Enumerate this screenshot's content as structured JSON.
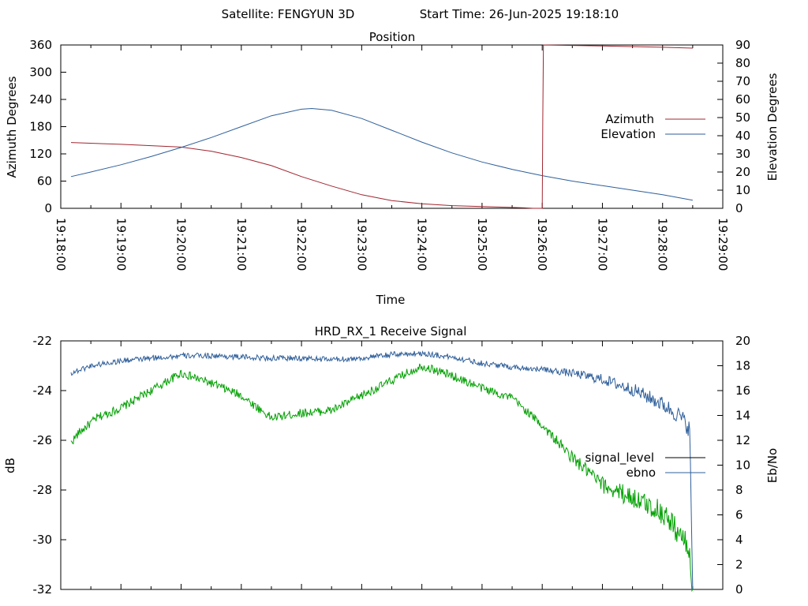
{
  "header": {
    "satellite_label": "Satellite: FENGYUN 3D",
    "start_time_label": "Start Time: 26-Jun-2025 19:18:10"
  },
  "chart_data": [
    {
      "type": "line",
      "title": "Position",
      "xlabel": "Time",
      "ylabel": "Azimuth Degrees",
      "y2label": "Elevation Degrees",
      "x_ticks": [
        "19:18:00",
        "19:19:00",
        "19:20:00",
        "19:21:00",
        "19:22:00",
        "19:23:00",
        "19:24:00",
        "19:25:00",
        "19:26:00",
        "19:27:00",
        "19:28:00",
        "19:29:00"
      ],
      "ylim": [
        0,
        360
      ],
      "y_ticks": [
        0,
        60,
        120,
        180,
        240,
        300,
        360
      ],
      "y2lim": [
        0,
        90
      ],
      "y2_ticks": [
        0,
        10,
        20,
        30,
        40,
        50,
        60,
        70,
        80,
        90
      ],
      "legend_position": "right",
      "series": [
        {
          "name": "Azimuth",
          "axis": "y",
          "color": "#a0252f",
          "x_minutes": [
            0.17,
            1,
            2,
            2.5,
            3,
            3.5,
            4,
            4.5,
            5,
            5.5,
            6,
            6.5,
            7,
            7.5,
            7.7,
            7.85,
            8.0,
            8.01,
            8.02,
            9.0,
            10.0,
            10.5
          ],
          "values": [
            145,
            141,
            135,
            126,
            112,
            94,
            70,
            49,
            30,
            17,
            10,
            6,
            4,
            2,
            1,
            0,
            0,
            200,
            360,
            358,
            355,
            353
          ]
        },
        {
          "name": "Elevation",
          "axis": "y2",
          "color": "#2f5f9a",
          "x_minutes": [
            0.17,
            0.5,
            1,
            1.5,
            2,
            2.5,
            3,
            3.5,
            4,
            4.17,
            4.5,
            5,
            5.5,
            6,
            6.5,
            7,
            7.5,
            8,
            8.5,
            9,
            9.5,
            10,
            10.5
          ],
          "values": [
            17.5,
            20,
            24,
            28.5,
            33.5,
            39,
            45,
            51,
            54.6,
            55,
            54,
            49.5,
            43,
            36.5,
            30.5,
            25.5,
            21.5,
            18,
            15,
            12.5,
            10,
            7.5,
            4.5
          ]
        }
      ]
    },
    {
      "type": "line",
      "title": "HRD_RX_1 Receive Signal",
      "ylabel": "dB",
      "y2label": "Eb/No",
      "ylim": [
        -32,
        -22
      ],
      "y_ticks": [
        -32,
        -30,
        -28,
        -26,
        -24,
        -22
      ],
      "y2lim": [
        0,
        20
      ],
      "y2_ticks": [
        0,
        2,
        4,
        6,
        8,
        10,
        12,
        14,
        16,
        18,
        20
      ],
      "legend_position": "right",
      "series": [
        {
          "name": "signal_level",
          "axis": "y",
          "color": "#00a000",
          "x_minutes": [
            0.17,
            0.3,
            0.6,
            1,
            1.5,
            2,
            2.5,
            3,
            3.5,
            4,
            4.5,
            5,
            5.5,
            6,
            6.5,
            7,
            7.5,
            8,
            8.5,
            9,
            9.5,
            10,
            10.3,
            10.45,
            10.5
          ],
          "values": [
            -26.1,
            -25.7,
            -25.1,
            -24.7,
            -24.0,
            -23.3,
            -23.7,
            -24.2,
            -25.1,
            -24.9,
            -24.8,
            -24.2,
            -23.6,
            -23.0,
            -23.4,
            -23.9,
            -24.3,
            -25.4,
            -26.7,
            -27.8,
            -28.3,
            -28.9,
            -29.8,
            -30.5,
            -32.0
          ]
        },
        {
          "name": "ebno",
          "axis": "y2",
          "color": "#2f5f9a",
          "x_minutes": [
            0.17,
            0.5,
            1,
            1.5,
            2,
            2.5,
            3,
            3.5,
            4,
            4.5,
            5,
            5.5,
            6,
            6.5,
            7,
            7.5,
            8,
            8.5,
            9,
            9.5,
            10,
            10.3,
            10.45,
            10.5
          ],
          "values": [
            17.4,
            18.0,
            18.4,
            18.6,
            18.8,
            18.8,
            18.7,
            18.6,
            18.6,
            18.5,
            18.6,
            18.9,
            19.0,
            18.7,
            18.2,
            17.9,
            17.7,
            17.4,
            16.9,
            16.1,
            14.9,
            13.9,
            12.9,
            0.0
          ]
        }
      ]
    }
  ]
}
